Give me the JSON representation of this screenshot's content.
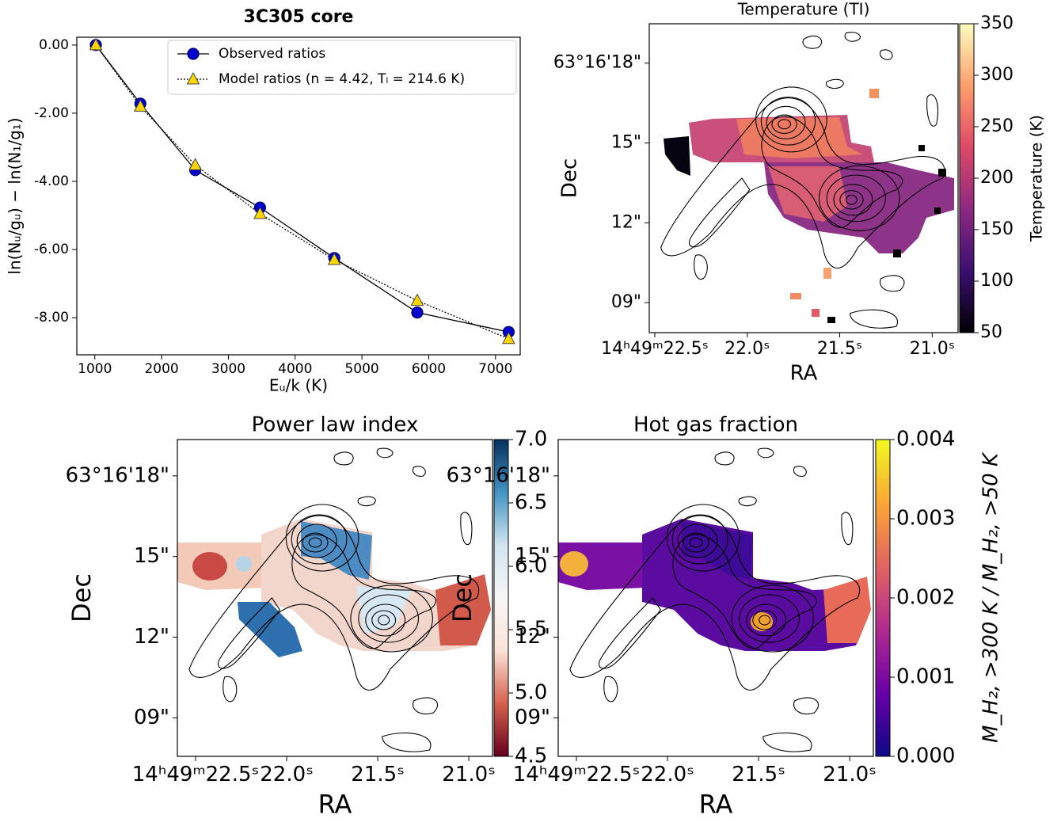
{
  "chart_data": [
    {
      "type": "line",
      "title": "3C305 core",
      "xlabel": "Eᵤ/k (K)",
      "ylabel": "ln(Nᵤ/gᵤ)  −  ln(N₁/g₁)",
      "x": [
        1015,
        1682,
        2504,
        3474,
        4586,
        5828,
        7197
      ],
      "series": [
        {
          "name": "Observed ratios",
          "color": "#0000cc",
          "marker": "circle",
          "linestyle": "solid",
          "values": [
            0.0,
            -1.72,
            -3.67,
            -4.77,
            -6.25,
            -7.85,
            -8.42
          ]
        },
        {
          "name": "Model ratios (n = 4.42, Tₗ = 214.6 K)",
          "color": "#ffd700",
          "marker": "triangle",
          "linestyle": "dotted",
          "values": [
            0.0,
            -1.8,
            -3.52,
            -4.95,
            -6.3,
            -7.5,
            -8.62
          ]
        }
      ],
      "xlim": [
        730,
        7370
      ],
      "ylim": [
        -9.09,
        0.23
      ],
      "xticks": [
        1000,
        2000,
        3000,
        4000,
        5000,
        6000,
        7000
      ],
      "yticks": [
        {
          "value": 0,
          "label": "0.00"
        },
        {
          "value": -2,
          "label": "-2.00"
        },
        {
          "value": -4,
          "label": "-4.00"
        },
        {
          "value": -6,
          "label": "-6.00"
        },
        {
          "value": -8,
          "label": "-8.00"
        }
      ],
      "legend": "upper right"
    },
    {
      "type": "image",
      "title": "Temperature (TI)",
      "xlabel": "RA",
      "ylabel": "Dec",
      "xlim": [
        22.53,
        20.86
      ],
      "ylim": [
        7.87,
        19.48
      ],
      "xticks": [
        {
          "value": 22.5,
          "label": "14ʰ49ᵐ22.5ˢ"
        },
        {
          "value": 22.0,
          "label": "22.0ˢ"
        },
        {
          "value": 21.5,
          "label": "21.5ˢ"
        },
        {
          "value": 21.0,
          "label": "21.0ˢ"
        }
      ],
      "yticks": [
        {
          "value": 18,
          "label": "63°16'18\""
        },
        {
          "value": 15,
          "label": "15\""
        },
        {
          "value": 12,
          "label": "12\""
        },
        {
          "value": 9,
          "label": "09\""
        }
      ],
      "colorbar": {
        "label": "Temperature (K)",
        "lim": [
          50,
          350
        ],
        "ticks": [
          50,
          100,
          150,
          200,
          250,
          300,
          350
        ],
        "colormap": [
          "#000004",
          "#3b0f70",
          "#8c2981",
          "#de4968",
          "#fe9f6d",
          "#fcfdbf"
        ]
      }
    },
    {
      "type": "image",
      "title": "Power law index",
      "xlabel": "RA",
      "ylabel": "Dec",
      "xlim": [
        22.6,
        20.87
      ],
      "ylim": [
        7.57,
        19.35
      ],
      "xticks": [
        {
          "value": 22.5,
          "label": "14ʰ49ᵐ22.5ˢ"
        },
        {
          "value": 22.0,
          "label": "22.0ˢ"
        },
        {
          "value": 21.5,
          "label": "21.5ˢ"
        },
        {
          "value": 21.0,
          "label": "21.0ˢ"
        }
      ],
      "yticks": [
        {
          "value": 18,
          "label": "63°16'18\""
        },
        {
          "value": 15,
          "label": "15\""
        },
        {
          "value": 12,
          "label": "12\""
        },
        {
          "value": 9,
          "label": "09\""
        }
      ],
      "colorbar": {
        "lim": [
          4.5,
          7.0
        ],
        "ticks": [
          4.5,
          {
            "value": 5,
            "label": "5.0"
          },
          5.5,
          {
            "value": 6,
            "label": "6.0"
          },
          6.5,
          {
            "value": 7,
            "label": "7.0"
          }
        ],
        "colormap": [
          "#67001f",
          "#d6604d",
          "#fbe3d6",
          "#f7f7f7",
          "#d1e5f0",
          "#4393c3",
          "#053061"
        ]
      }
    },
    {
      "type": "image",
      "title": "Hot gas fraction",
      "xlabel": "RA",
      "ylabel": "Dec",
      "xlim": [
        22.6,
        20.87
      ],
      "ylim": [
        7.57,
        19.35
      ],
      "xticks": [
        {
          "value": 22.5,
          "label": "14ʰ49ᵐ22.5ˢ"
        },
        {
          "value": 22.0,
          "label": "22.0ˢ"
        },
        {
          "value": 21.5,
          "label": "21.5ˢ"
        },
        {
          "value": 21.0,
          "label": "21.0ˢ"
        }
      ],
      "yticks": [
        {
          "value": 18,
          "label": "63°16'18\""
        },
        {
          "value": 15,
          "label": "15\""
        },
        {
          "value": 12,
          "label": "12\""
        },
        {
          "value": 9,
          "label": "09\""
        }
      ],
      "colorbar": {
        "label": "M_H₂, >300 K / M_H₂, >50 K",
        "lim": [
          0,
          0.004
        ],
        "ticks": [
          {
            "value": 0,
            "label": "0.000"
          },
          0.001,
          0.002,
          0.003,
          0.004
        ],
        "colormap": [
          "#0d0887",
          "#6a00a8",
          "#b12a90",
          "#e16462",
          "#fca636",
          "#f0f921"
        ]
      }
    }
  ]
}
